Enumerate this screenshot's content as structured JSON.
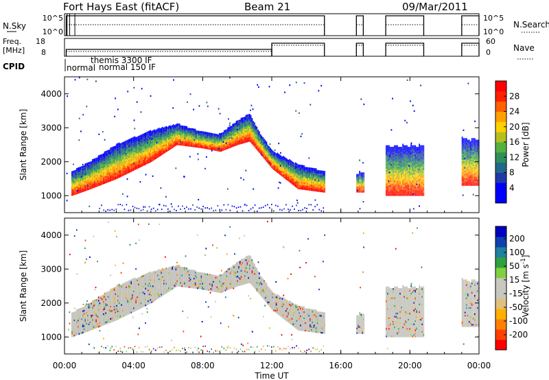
{
  "header": {
    "station": "Fort Hays East (fitACF)",
    "beam": "Beam 21",
    "date": "09/Mar/2011"
  },
  "strip": {
    "nsky_label": "N.Sky",
    "nsky_ticks": [
      "10^5",
      "10^0"
    ],
    "nsearch_label": "N.Search",
    "freq_label_line1": "Freq.",
    "freq_label_line2": "[MHz]",
    "freq_ticks": [
      "18",
      "8"
    ],
    "nave_ticks": [
      "60",
      "0"
    ],
    "nave_label": "Nave",
    "cpid_label": "CPID",
    "cpid_entries": [
      "normal",
      "themis 3300 IF",
      "normal 150 IF"
    ]
  },
  "colors": {
    "power_scale": [
      "#0000ff",
      "#0000ff",
      "#1f3aa8",
      "#1f6a8a",
      "#2f8f5a",
      "#55b040",
      "#b5c020",
      "#ffd000",
      "#ffa000",
      "#ff6000",
      "#ff2000",
      "#ff0000"
    ],
    "velocity_scale": [
      "#ff0000",
      "#ff4000",
      "#ff8000",
      "#ffb000",
      "#e0c080",
      "#c8c8c0",
      "#c8c8c0",
      "#80d040",
      "#30a040",
      "#2080a0",
      "#1040b0",
      "#0000c0"
    ],
    "ground_scatter": "#c0c0b8"
  },
  "chart_data": [
    {
      "type": "heatmap",
      "panel": "power",
      "xlabel": "",
      "ylabel": "Slant Range [km]",
      "x_ticks": [
        "00:00",
        "04:00",
        "08:00",
        "12:00",
        "16:00",
        "20:00",
        "00:00"
      ],
      "x_hours": [
        0,
        4,
        8,
        12,
        16,
        20,
        24
      ],
      "xlim": [
        0,
        24
      ],
      "ylim": [
        500,
        4500
      ],
      "y_ticks": [
        1000,
        2000,
        3000,
        4000
      ],
      "colorbar": {
        "label": "Power [dB]",
        "ticks": [
          4,
          8,
          12,
          16,
          20,
          24,
          28
        ],
        "range": [
          0,
          32
        ]
      },
      "echo_top_km": [
        [
          0.4,
          1700
        ],
        [
          1.5,
          2000
        ],
        [
          3,
          2500
        ],
        [
          5,
          2900
        ],
        [
          6.5,
          3100
        ],
        [
          8,
          2850
        ],
        [
          9,
          2800
        ],
        [
          10,
          3200
        ],
        [
          10.7,
          3400
        ],
        [
          11.2,
          2900
        ],
        [
          12,
          2300
        ],
        [
          13.5,
          1900
        ],
        [
          15,
          1700
        ]
      ],
      "echo_bottom_km": [
        [
          0.4,
          1000
        ],
        [
          1.5,
          1200
        ],
        [
          3,
          1500
        ],
        [
          5,
          2000
        ],
        [
          6.5,
          2500
        ],
        [
          8,
          2400
        ],
        [
          9,
          2300
        ],
        [
          10,
          2500
        ],
        [
          10.7,
          2600
        ],
        [
          11.2,
          2300
        ],
        [
          12,
          1800
        ],
        [
          13.5,
          1200
        ],
        [
          15,
          1100
        ]
      ],
      "data_gaps_hours": [
        [
          15.1,
          16.9
        ],
        [
          17.3,
          18.6
        ],
        [
          20.8,
          23.0
        ]
      ]
    },
    {
      "type": "heatmap",
      "panel": "velocity",
      "xlabel": "Time UT",
      "ylabel": "Slant Range [km]",
      "x_ticks": [
        "00:00",
        "04:00",
        "08:00",
        "12:00",
        "16:00",
        "20:00",
        "00:00"
      ],
      "x_hours": [
        0,
        4,
        8,
        12,
        16,
        20,
        24
      ],
      "xlim": [
        0,
        24
      ],
      "ylim": [
        500,
        4500
      ],
      "y_ticks": [
        1000,
        2000,
        3000,
        4000
      ],
      "colorbar": {
        "label": "Velocity [m s^-1]",
        "ticks": [
          -200,
          -100,
          -50,
          -15,
          15,
          50,
          100,
          200
        ]
      }
    }
  ]
}
